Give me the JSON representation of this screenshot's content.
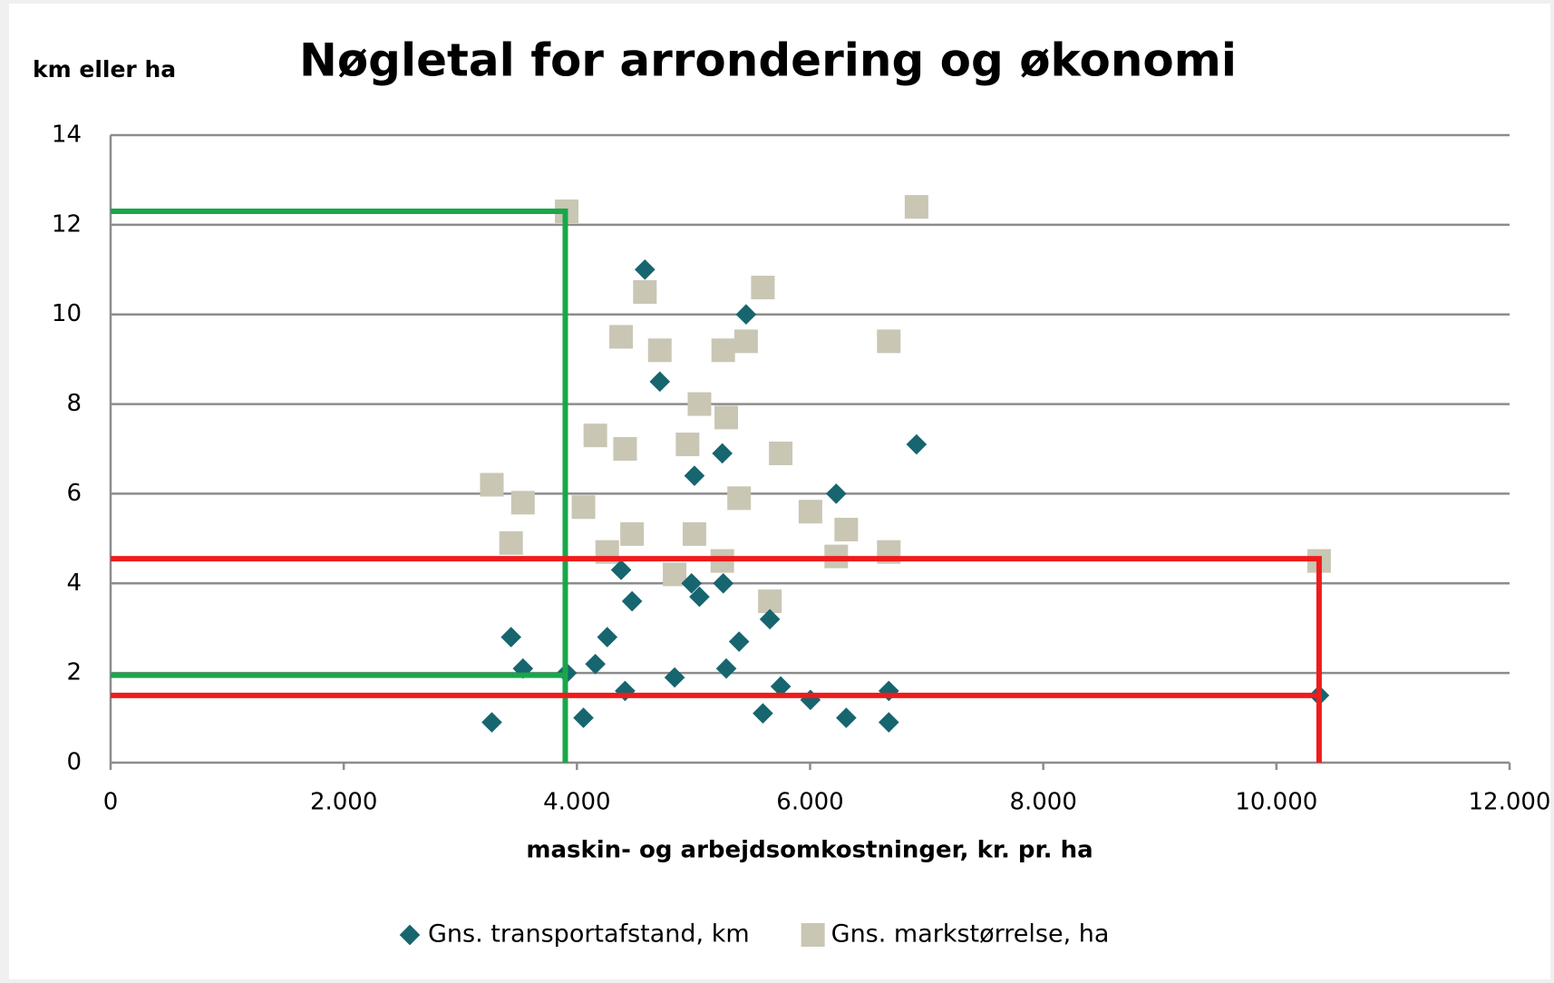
{
  "chart_data": {
    "type": "scatter",
    "title": "Nøgletal for arrondering og økonomi",
    "ylabel": "km eller ha",
    "xlabel": "maskin- og arbejdsomkostninger, kr. pr. ha",
    "xlim": [
      0,
      12000
    ],
    "ylim": [
      0,
      14
    ],
    "xticks": [
      0,
      {
        "value": 2000,
        "label": "2.000"
      },
      {
        "value": 4000,
        "label": "4.000"
      },
      {
        "value": 6000,
        "label": "6.000"
      },
      {
        "value": 8000,
        "label": "8.000"
      },
      {
        "value": 10000,
        "label": "10.000"
      },
      {
        "value": 12000,
        "label": "12.000"
      }
    ],
    "yticks": [
      0,
      2,
      4,
      6,
      8,
      10,
      12,
      14
    ],
    "grid": true,
    "legend": "bottom",
    "series": [
      {
        "name": "Gns. transportafstand, km",
        "color": "#17656f",
        "marker": "diamond",
        "x": [
          3270,
          3435,
          3537,
          3912,
          4056,
          4158,
          4260,
          4379,
          4413,
          4473,
          4583,
          4711,
          4838,
          4983,
          5008,
          5051,
          5247,
          5255,
          5281,
          5391,
          5451,
          5595,
          5655,
          5748,
          6003,
          6224,
          6310,
          6675,
          6675,
          6913,
          10366
        ],
        "values": [
          0.9,
          2.8,
          2.1,
          2.0,
          1.0,
          2.2,
          2.8,
          4.3,
          1.6,
          3.6,
          11.0,
          8.5,
          1.9,
          4.0,
          6.4,
          3.7,
          6.9,
          4.0,
          2.1,
          2.7,
          10.0,
          1.1,
          3.2,
          1.7,
          1.4,
          6.0,
          1.0,
          1.6,
          0.9,
          7.1,
          1.5
        ]
      },
      {
        "name": "Gns. markstørrelse, ha",
        "color": "#c9c6b4",
        "marker": "square",
        "x": [
          3270,
          3435,
          3537,
          3912,
          4056,
          4158,
          4260,
          4379,
          4413,
          4473,
          4583,
          4711,
          4838,
          4949,
          5008,
          5051,
          5247,
          5255,
          5281,
          5391,
          5451,
          5595,
          5655,
          5748,
          6003,
          6224,
          6310,
          6675,
          6675,
          6913,
          10366
        ],
        "values": [
          6.2,
          4.9,
          5.8,
          12.3,
          5.7,
          7.3,
          4.7,
          9.5,
          7.0,
          5.1,
          10.5,
          9.2,
          4.2,
          7.1,
          5.1,
          8.0,
          4.5,
          9.2,
          7.7,
          5.9,
          9.4,
          10.6,
          3.6,
          6.9,
          5.6,
          4.6,
          5.2,
          4.7,
          9.4,
          12.4,
          4.5
        ]
      }
    ],
    "reference_lines": [
      {
        "color": "#1aa64a",
        "x": [
          0,
          3900,
          3900
        ],
        "y": [
          12.3,
          12.3,
          0
        ]
      },
      {
        "color": "#1aa64a",
        "x": [
          0,
          3900
        ],
        "y": [
          1.95,
          1.95
        ]
      },
      {
        "color": "#ee1c1c",
        "x": [
          0,
          10366,
          10366
        ],
        "y": [
          4.55,
          4.55,
          0
        ]
      },
      {
        "color": "#ee1c1c",
        "x": [
          0,
          10366
        ],
        "y": [
          1.5,
          1.5
        ]
      }
    ]
  }
}
